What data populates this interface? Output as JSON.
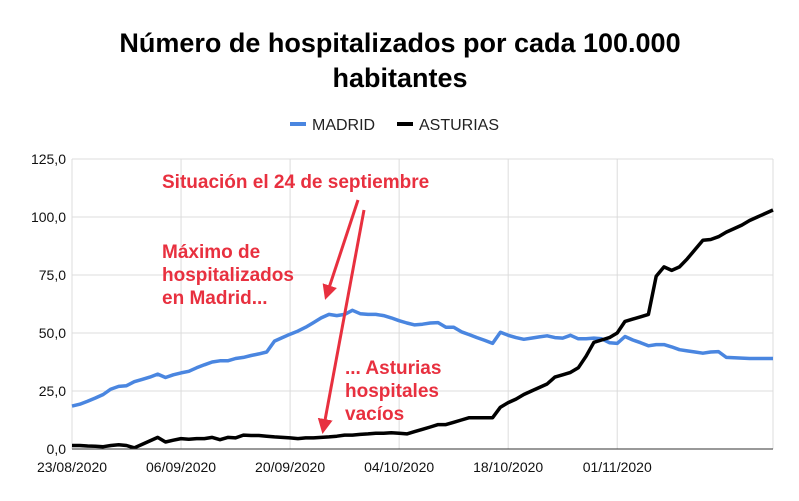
{
  "chart_data": {
    "type": "line",
    "title": [
      "Número de hospitalizados por cada 100.000",
      "habitantes"
    ],
    "xlabel": "",
    "ylabel": "",
    "x_tick_labels": [
      "23/08/2020",
      "06/09/2020",
      "20/09/2020",
      "04/10/2020",
      "18/10/2020",
      "01/11/2020"
    ],
    "y_tick_labels": [
      "0,0",
      "25,0",
      "50,0",
      "75,0",
      "100,0",
      "125,0"
    ],
    "ylim": [
      0,
      125
    ],
    "x_range_days_from_2020_08_23": [
      0,
      90
    ],
    "grid": true,
    "legend_position": "top-center",
    "series": [
      {
        "name": "MADRID",
        "color": "#4a86e0",
        "values": [
          [
            0,
            18.5
          ],
          [
            1,
            19.3
          ],
          [
            2,
            20.6
          ],
          [
            3,
            22
          ],
          [
            4,
            23.5
          ],
          [
            5,
            25.8
          ],
          [
            6,
            27
          ],
          [
            7,
            27.3
          ],
          [
            8,
            29
          ],
          [
            9,
            30
          ],
          [
            10,
            31
          ],
          [
            11,
            32.3
          ],
          [
            12,
            30.8
          ],
          [
            13,
            32
          ],
          [
            14,
            32.8
          ],
          [
            15,
            33.5
          ],
          [
            16,
            35
          ],
          [
            17,
            36.3
          ],
          [
            18,
            37.5
          ],
          [
            19,
            38
          ],
          [
            20,
            38
          ],
          [
            21,
            39
          ],
          [
            22,
            39.5
          ],
          [
            23,
            40.3
          ],
          [
            24,
            41
          ],
          [
            25,
            41.8
          ],
          [
            26,
            46.5
          ],
          [
            27,
            48
          ],
          [
            28,
            49.5
          ],
          [
            29,
            50.8
          ],
          [
            30,
            52.5
          ],
          [
            31,
            54.5
          ],
          [
            32,
            56.5
          ],
          [
            33,
            58
          ],
          [
            34,
            57.5
          ],
          [
            35,
            58
          ],
          [
            36,
            59.8
          ],
          [
            37,
            58.3
          ],
          [
            38,
            58
          ],
          [
            39,
            58
          ],
          [
            40,
            57.5
          ],
          [
            41,
            56.5
          ],
          [
            42,
            55.3
          ],
          [
            43,
            54.3
          ],
          [
            44,
            53.5
          ],
          [
            45,
            53.8
          ],
          [
            46,
            54.3
          ],
          [
            47,
            54.5
          ],
          [
            48,
            52.5
          ],
          [
            49,
            52.5
          ],
          [
            50,
            50.5
          ],
          [
            51,
            49.3
          ],
          [
            52,
            48
          ],
          [
            53,
            46.8
          ],
          [
            54,
            45.5
          ],
          [
            55,
            50.3
          ],
          [
            56,
            49
          ],
          [
            57,
            48
          ],
          [
            58,
            47.3
          ],
          [
            59,
            47.8
          ],
          [
            60,
            48.3
          ],
          [
            61,
            48.8
          ],
          [
            62,
            48
          ],
          [
            63,
            47.8
          ],
          [
            64,
            49
          ],
          [
            65,
            47.5
          ],
          [
            66,
            47.5
          ],
          [
            67,
            47.8
          ],
          [
            68,
            47.5
          ],
          [
            69,
            45.8
          ],
          [
            70,
            45.5
          ],
          [
            71,
            48.5
          ],
          [
            72,
            47
          ],
          [
            73,
            45.8
          ],
          [
            74,
            44.5
          ],
          [
            75,
            45
          ],
          [
            76,
            45
          ],
          [
            77,
            44
          ],
          [
            78,
            42.8
          ],
          [
            79,
            42.3
          ],
          [
            80,
            41.8
          ],
          [
            81,
            41.3
          ],
          [
            82,
            41.8
          ],
          [
            83,
            42
          ],
          [
            84,
            39.5
          ],
          [
            85,
            39.3
          ],
          [
            86,
            39.2
          ],
          [
            87,
            39
          ],
          [
            88,
            39
          ],
          [
            89,
            39
          ],
          [
            90,
            39
          ]
        ]
      },
      {
        "name": "ASTURIAS",
        "color": "#000000",
        "values": [
          [
            0,
            1.5
          ],
          [
            1,
            1.5
          ],
          [
            2,
            1.3
          ],
          [
            3,
            1.2
          ],
          [
            4,
            1
          ],
          [
            5,
            1.5
          ],
          [
            6,
            1.8
          ],
          [
            7,
            1.5
          ],
          [
            8,
            0.5
          ],
          [
            9,
            2
          ],
          [
            10,
            3.5
          ],
          [
            11,
            5
          ],
          [
            12,
            3
          ],
          [
            13,
            3.8
          ],
          [
            14,
            4.5
          ],
          [
            15,
            4.2
          ],
          [
            16,
            4.5
          ],
          [
            17,
            4.5
          ],
          [
            18,
            5
          ],
          [
            19,
            4
          ],
          [
            20,
            5
          ],
          [
            21,
            4.8
          ],
          [
            22,
            6
          ],
          [
            23,
            5.8
          ],
          [
            24,
            5.8
          ],
          [
            25,
            5.5
          ],
          [
            26,
            5.2
          ],
          [
            27,
            5
          ],
          [
            28,
            4.8
          ],
          [
            29,
            4.5
          ],
          [
            30,
            4.8
          ],
          [
            31,
            4.8
          ],
          [
            32,
            5
          ],
          [
            33,
            5.2
          ],
          [
            34,
            5.5
          ],
          [
            35,
            6
          ],
          [
            36,
            6
          ],
          [
            37,
            6.3
          ],
          [
            38,
            6.5
          ],
          [
            39,
            6.8
          ],
          [
            40,
            6.8
          ],
          [
            41,
            7
          ],
          [
            42,
            6.8
          ],
          [
            43,
            6.5
          ],
          [
            44,
            7.5
          ],
          [
            45,
            8.5
          ],
          [
            46,
            9.5
          ],
          [
            47,
            10.5
          ],
          [
            48,
            10.5
          ],
          [
            49,
            11.5
          ],
          [
            50,
            12.5
          ],
          [
            51,
            13.5
          ],
          [
            52,
            13.5
          ],
          [
            53,
            13.5
          ],
          [
            54,
            13.5
          ],
          [
            55,
            18
          ],
          [
            56,
            20
          ],
          [
            57,
            21.5
          ],
          [
            58,
            23.5
          ],
          [
            59,
            25
          ],
          [
            60,
            26.5
          ],
          [
            61,
            28
          ],
          [
            62,
            31
          ],
          [
            63,
            32
          ],
          [
            64,
            33
          ],
          [
            65,
            35
          ],
          [
            66,
            40
          ],
          [
            67,
            46
          ],
          [
            68,
            47
          ],
          [
            69,
            48
          ],
          [
            70,
            50
          ],
          [
            71,
            55
          ],
          [
            72,
            56
          ],
          [
            73,
            57
          ],
          [
            74,
            58
          ],
          [
            75,
            74.5
          ],
          [
            76,
            78.5
          ],
          [
            77,
            77
          ],
          [
            78,
            78.5
          ],
          [
            79,
            82
          ],
          [
            80,
            86
          ],
          [
            81,
            90
          ],
          [
            82,
            90.3
          ],
          [
            83,
            91.5
          ],
          [
            84,
            93.5
          ],
          [
            85,
            95
          ],
          [
            86,
            96.5
          ],
          [
            87,
            98.5
          ],
          [
            88,
            100
          ],
          [
            89,
            101.5
          ],
          [
            90,
            103
          ]
        ]
      }
    ],
    "annotations": {
      "situacion": "Situación el 24 de septiembre",
      "maximo": [
        "Máximo de",
        "hospitalizados",
        "en Madrid..."
      ],
      "asturias": [
        "... Asturias",
        "hospitales",
        "vacíos"
      ],
      "color": "#e8303f"
    }
  }
}
